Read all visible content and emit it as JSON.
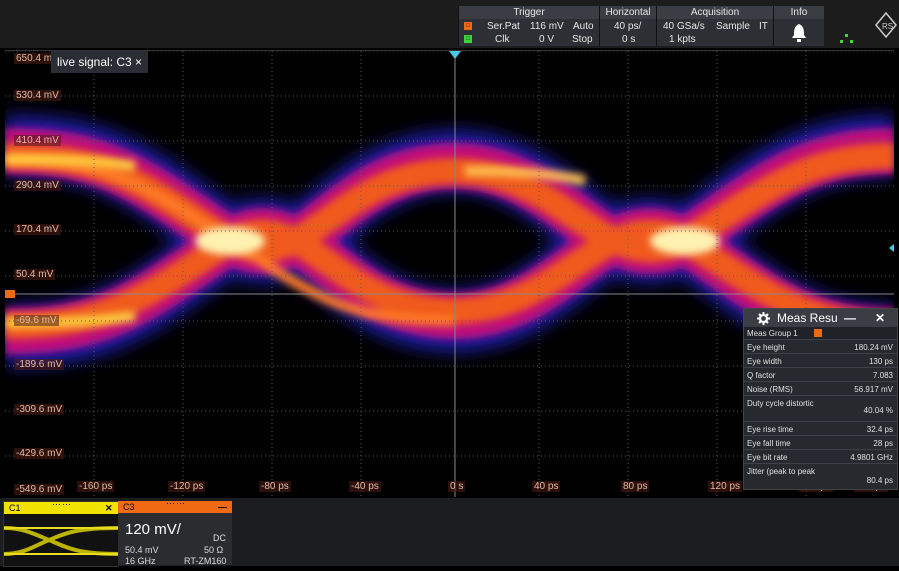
{
  "topbar": {
    "trigger": {
      "label": "Trigger",
      "row1": {
        "source": "Ser.Pat",
        "level": "116 mV",
        "mode": "Auto"
      },
      "row2": {
        "source": "Clk",
        "level": "0 V",
        "mode": "Stop"
      }
    },
    "horizontal": {
      "label": "Horizontal",
      "row1": "40 ps/",
      "row2": "0 s"
    },
    "acquisition": {
      "label": "Acquisition",
      "row1_rate": "40 GSa/s",
      "row1_mode": "Sample",
      "row1_extra": "IT",
      "row2": "1 kpts"
    },
    "info": {
      "label": "Info"
    }
  },
  "plot": {
    "signal_tab": "live signal: C3 ×",
    "y_labels": [
      "650.4 mV",
      "530.4 mV",
      "410.4 mV",
      "290.4 mV",
      "170.4 mV",
      "50.4 mV",
      "-69.6 mV",
      "-189.6 mV",
      "-309.6 mV",
      "-429.6 mV",
      "-549.6 mV"
    ],
    "x_labels": [
      "-160 ps",
      "-120 ps",
      "-80 ps",
      "-40 ps",
      "0 s",
      "40 ps",
      "80 ps",
      "120 ps",
      "160 ps",
      "200 ps"
    ]
  },
  "meas": {
    "title": "Meas Resu",
    "group": "Meas Group 1",
    "rows": [
      {
        "k": "Eye height",
        "v": "180.24 mV"
      },
      {
        "k": "Eye width",
        "v": "130 ps"
      },
      {
        "k": "Q factor",
        "v": "7.083"
      },
      {
        "k": "Noise (RMS)",
        "v": "56.917 mV"
      },
      {
        "k": "Duty cycle distortic",
        "v": "40.04 %"
      },
      {
        "k": "Eye rise time",
        "v": "32.4 ps"
      },
      {
        "k": "Eye fall time",
        "v": "28 ps"
      },
      {
        "k": "Eye bit rate",
        "v": "4.9801 GHz"
      },
      {
        "k": "Jitter (peak to peak",
        "v": "80.4 ps"
      }
    ]
  },
  "channels": {
    "c1": {
      "label": "C1"
    },
    "c3": {
      "label": "C3",
      "scale": "120 mV/",
      "coupling": "DC",
      "offset": "50.4 mV",
      "impedance": "50 Ω",
      "bandwidth": "16 GHz",
      "probe": "RT-ZM160"
    }
  }
}
